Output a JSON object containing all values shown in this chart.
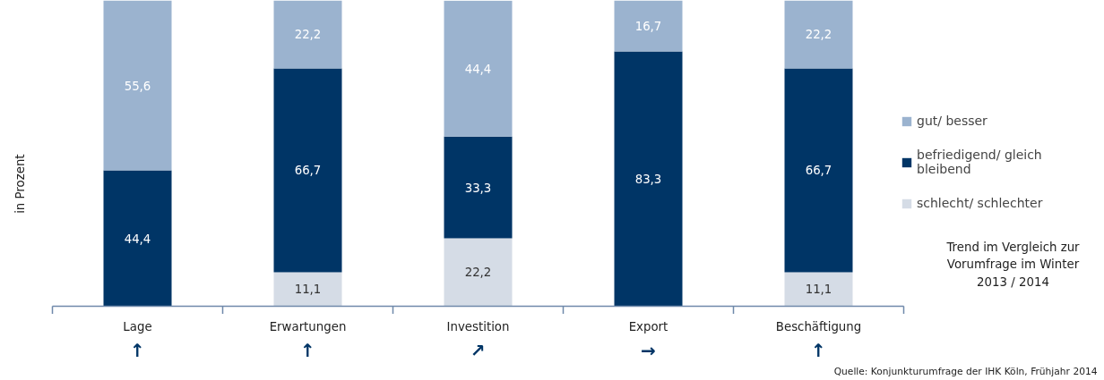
{
  "chart_data": {
    "type": "bar",
    "stacked": true,
    "ylabel": "in Prozent",
    "categories": [
      "Lage",
      "Erwartungen",
      "Investition",
      "Export",
      "Beschäftigung"
    ],
    "series": [
      {
        "name": "schlecht/ schlechter",
        "color": "#d5dce6",
        "values": [
          null,
          11.1,
          22.2,
          null,
          11.1
        ],
        "value_labels": [
          null,
          "11,1",
          "22,2",
          null,
          "11,1"
        ]
      },
      {
        "name": "befriedigend/ gleich bleibend",
        "color": "#003566",
        "values": [
          44.4,
          66.7,
          33.3,
          83.3,
          66.7
        ],
        "value_labels": [
          "44,4",
          "66,7",
          "33,3",
          "83,3",
          "66,7"
        ]
      },
      {
        "name": "gut/ besser",
        "color": "#9bb3cf",
        "values": [
          55.6,
          22.2,
          44.4,
          16.7,
          22.2
        ],
        "value_labels": [
          "55,6",
          "22,2",
          "44,4",
          "16,7",
          "22,2"
        ]
      }
    ],
    "legend": "right",
    "grid": false,
    "annotations": [
      "↑",
      "↑",
      "↗",
      "→",
      "↑",
      "Trend im Vergleich zur Vorumfrage im Winter 2013 / 2014",
      "Quelle: Konjunkturumfrage der IHK Köln, Frühjahr 2014"
    ]
  }
}
